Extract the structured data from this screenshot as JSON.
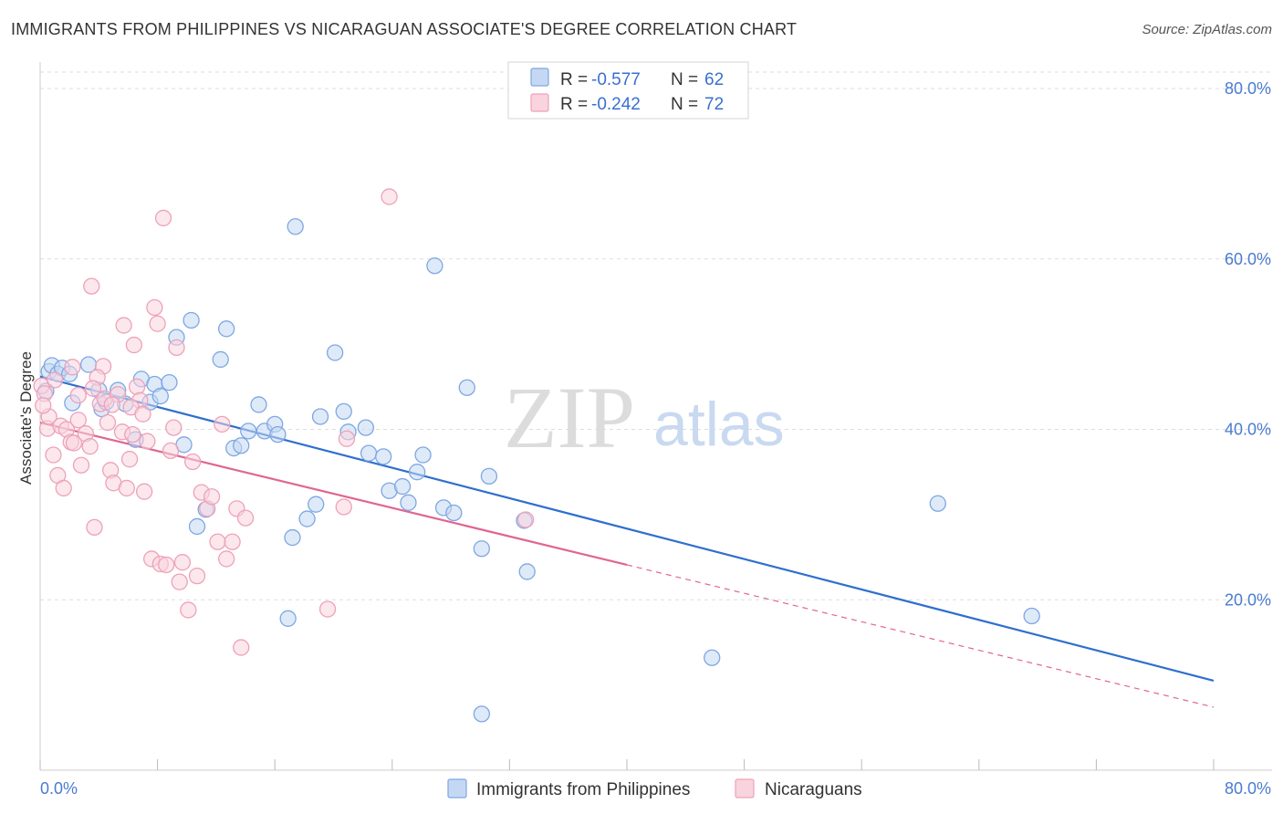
{
  "chart_data": {
    "type": "scatter",
    "title": "IMMIGRANTS FROM PHILIPPINES VS NICARAGUAN ASSOCIATE'S DEGREE CORRELATION CHART",
    "source": "Source: ZipAtlas.com",
    "ylabel": "Associate's Degree",
    "xlim": [
      0,
      80
    ],
    "ylim": [
      0,
      80
    ],
    "x_tick_labels": [
      "0.0%",
      "80.0%"
    ],
    "y_ticks": [
      {
        "value": 20,
        "label": "20.0%"
      },
      {
        "value": 40,
        "label": "40.0%"
      },
      {
        "value": 60,
        "label": "60.0%"
      },
      {
        "value": 80,
        "label": "80.0%"
      }
    ],
    "grid": true,
    "watermark": {
      "zip": "ZIP",
      "atlas": "atlas"
    },
    "legend": [
      {
        "r_label": "R =",
        "r_value": "-0.577",
        "n_label": "N =",
        "n_value": "62"
      },
      {
        "r_label": "R =",
        "r_value": "-0.242",
        "n_label": "N =",
        "n_value": 72
      }
    ],
    "series": [
      {
        "name": "Immigrants from Philippines",
        "color": "#7ea7e3",
        "fill": "#c5d8f3",
        "line_color": "#2f6fce",
        "trend": {
          "x0": 0,
          "y0": 46.2,
          "x1": 80,
          "y1": 10.5,
          "solid_to": 80
        },
        "points": [
          [
            0.4,
            44.5
          ],
          [
            0.6,
            46.8
          ],
          [
            0.8,
            47.5
          ],
          [
            1.2,
            46.5
          ],
          [
            1.5,
            47.2
          ],
          [
            2.2,
            43.1
          ],
          [
            3.3,
            47.6
          ],
          [
            4.0,
            44.6
          ],
          [
            4.2,
            42.4
          ],
          [
            4.5,
            43.2
          ],
          [
            5.3,
            44.6
          ],
          [
            5.8,
            43.0
          ],
          [
            6.5,
            38.8
          ],
          [
            6.9,
            45.9
          ],
          [
            7.5,
            43.2
          ],
          [
            7.8,
            45.3
          ],
          [
            8.2,
            43.9
          ],
          [
            8.8,
            45.5
          ],
          [
            9.3,
            50.8
          ],
          [
            9.8,
            38.2
          ],
          [
            10.3,
            52.8
          ],
          [
            10.7,
            28.6
          ],
          [
            11.3,
            30.6
          ],
          [
            12.3,
            48.2
          ],
          [
            12.7,
            51.8
          ],
          [
            13.2,
            37.8
          ],
          [
            13.7,
            38.1
          ],
          [
            14.2,
            39.8
          ],
          [
            14.9,
            42.9
          ],
          [
            15.3,
            39.8
          ],
          [
            16.0,
            40.6
          ],
          [
            16.2,
            39.4
          ],
          [
            17.2,
            27.3
          ],
          [
            17.4,
            63.8
          ],
          [
            18.2,
            29.5
          ],
          [
            18.8,
            31.2
          ],
          [
            19.1,
            41.5
          ],
          [
            20.1,
            49.0
          ],
          [
            20.7,
            42.1
          ],
          [
            21.0,
            39.7
          ],
          [
            22.2,
            40.2
          ],
          [
            22.4,
            37.2
          ],
          [
            23.4,
            36.8
          ],
          [
            23.8,
            32.8
          ],
          [
            24.7,
            33.3
          ],
          [
            25.1,
            31.4
          ],
          [
            25.7,
            35.0
          ],
          [
            26.1,
            37.0
          ],
          [
            26.9,
            59.2
          ],
          [
            27.5,
            30.8
          ],
          [
            28.2,
            30.2
          ],
          [
            29.1,
            44.9
          ],
          [
            30.1,
            26.0
          ],
          [
            30.6,
            34.5
          ],
          [
            33.0,
            29.3
          ],
          [
            33.2,
            23.3
          ],
          [
            16.9,
            17.8
          ],
          [
            30.1,
            6.6
          ],
          [
            45.8,
            13.2
          ],
          [
            61.2,
            31.3
          ],
          [
            67.6,
            18.1
          ],
          [
            2.0,
            46.5
          ]
        ]
      },
      {
        "name": "Nicaraguans",
        "color": "#eda2b9",
        "fill": "#f9d3de",
        "line_color": "#e06690",
        "trend": {
          "x0": 0,
          "y0": 40.8,
          "x1": 80,
          "y1": 7.4,
          "solid_to": 40
        },
        "points": [
          [
            0.1,
            45.1
          ],
          [
            0.3,
            44.2
          ],
          [
            0.5,
            40.1
          ],
          [
            0.6,
            41.5
          ],
          [
            0.9,
            37.0
          ],
          [
            1.2,
            34.6
          ],
          [
            1.4,
            40.4
          ],
          [
            1.6,
            33.1
          ],
          [
            1.8,
            40.0
          ],
          [
            2.1,
            38.5
          ],
          [
            2.3,
            38.4
          ],
          [
            2.6,
            41.1
          ],
          [
            2.8,
            35.8
          ],
          [
            3.1,
            39.5
          ],
          [
            3.4,
            38.0
          ],
          [
            3.5,
            56.8
          ],
          [
            3.7,
            28.5
          ],
          [
            4.1,
            43.0
          ],
          [
            4.4,
            43.6
          ],
          [
            4.6,
            40.8
          ],
          [
            4.8,
            35.2
          ],
          [
            5.0,
            33.7
          ],
          [
            5.3,
            44.1
          ],
          [
            5.6,
            39.7
          ],
          [
            5.9,
            33.1
          ],
          [
            6.1,
            36.5
          ],
          [
            6.4,
            49.9
          ],
          [
            6.6,
            45.0
          ],
          [
            6.8,
            43.4
          ],
          [
            7.1,
            32.7
          ],
          [
            7.3,
            38.6
          ],
          [
            7.6,
            24.8
          ],
          [
            7.8,
            54.3
          ],
          [
            8.0,
            52.4
          ],
          [
            8.2,
            24.2
          ],
          [
            8.4,
            64.8
          ],
          [
            8.6,
            24.1
          ],
          [
            8.9,
            37.5
          ],
          [
            9.1,
            40.2
          ],
          [
            9.3,
            49.6
          ],
          [
            9.5,
            22.1
          ],
          [
            9.7,
            24.4
          ],
          [
            10.1,
            18.8
          ],
          [
            10.4,
            36.2
          ],
          [
            10.7,
            22.8
          ],
          [
            11.0,
            32.6
          ],
          [
            11.4,
            30.7
          ],
          [
            11.7,
            32.1
          ],
          [
            12.1,
            26.8
          ],
          [
            12.4,
            40.6
          ],
          [
            12.7,
            24.8
          ],
          [
            13.1,
            26.8
          ],
          [
            13.4,
            30.7
          ],
          [
            13.7,
            14.4
          ],
          [
            14.0,
            29.6
          ],
          [
            19.6,
            18.9
          ],
          [
            20.7,
            30.9
          ],
          [
            20.9,
            38.9
          ],
          [
            23.8,
            67.3
          ],
          [
            33.1,
            29.4
          ],
          [
            5.7,
            52.2
          ],
          [
            4.3,
            47.4
          ],
          [
            6.2,
            42.6
          ],
          [
            7.0,
            41.8
          ],
          [
            2.6,
            44.0
          ],
          [
            1.0,
            45.8
          ],
          [
            3.9,
            46.1
          ],
          [
            4.9,
            42.9
          ],
          [
            6.3,
            39.4
          ],
          [
            0.2,
            42.8
          ],
          [
            2.2,
            47.3
          ],
          [
            3.6,
            44.8
          ]
        ]
      }
    ]
  }
}
